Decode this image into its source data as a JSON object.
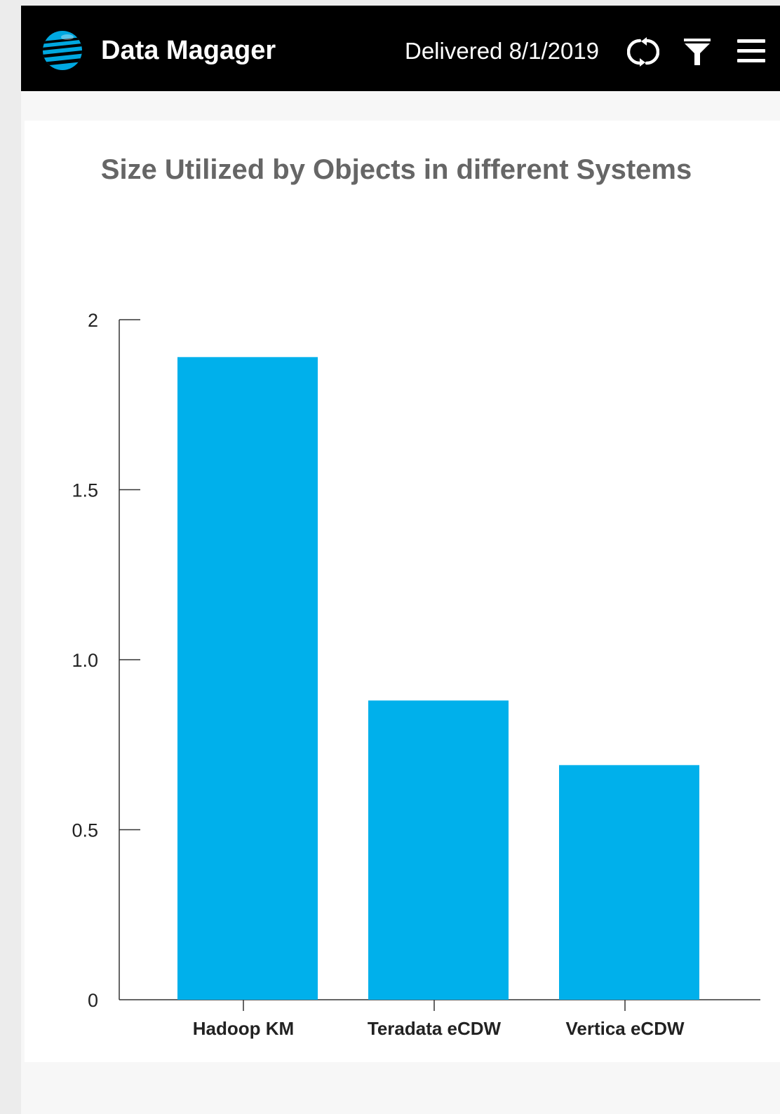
{
  "header": {
    "title": "Data Magager",
    "delivered": "Delivered 8/1/2019",
    "logo_icon": "globe-logo-icon",
    "refresh_icon": "refresh-icon",
    "filter_icon": "filter-icon",
    "menu_icon": "hamburger-menu-icon",
    "background_color": "#000000",
    "logo_color": "#00a8e0"
  },
  "chart_data": {
    "type": "bar",
    "title": "Size Utilized by Objects in different Systems",
    "xlabel": "",
    "ylabel": "",
    "categories": [
      "Hadoop KM",
      "Teradata eCDW",
      "Vertica eCDW"
    ],
    "values": [
      1.89,
      0.88,
      0.69
    ],
    "ylim": [
      0,
      2
    ],
    "yticks": [
      0,
      0.5,
      1.0,
      1.5,
      2
    ],
    "ytick_labels": [
      "0",
      "0.5",
      "1.0",
      "1.5",
      "2"
    ],
    "bar_color": "#00b0eb",
    "grid": false,
    "legend": "none"
  }
}
